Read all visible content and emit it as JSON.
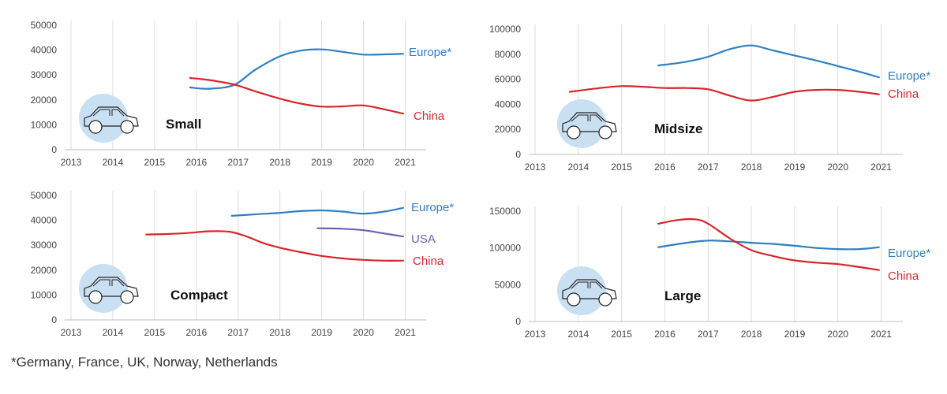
{
  "footnote": "*Germany, France, UK, Norway, Netherlands",
  "colors": {
    "Europe*": "#2f7fc1",
    "China": "#d7262b",
    "USA": "#6a62b5",
    "car_circle": "#c9dff2",
    "car_outline": "#222222"
  },
  "chart_data": [
    {
      "type": "line",
      "title": "Small",
      "x_ticks": [
        "2013",
        "2014",
        "2015",
        "2016",
        "2017",
        "2018",
        "2019",
        "2020",
        "2021"
      ],
      "xlim": [
        2013,
        2021.5
      ],
      "ylim": [
        0,
        50000
      ],
      "y_ticks": [
        "0",
        "10000",
        "20000",
        "30000",
        "40000",
        "50000"
      ],
      "grid": true,
      "series": [
        {
          "name": "Europe*",
          "x": [
            2015.85,
            2016.3,
            2016.9,
            2017.4,
            2018.0,
            2018.5,
            2019.0,
            2019.5,
            2020.0,
            2020.5,
            2020.95
          ],
          "values": [
            25000,
            24500,
            26000,
            32000,
            37500,
            39800,
            40300,
            39300,
            38200,
            38300,
            38500
          ]
        },
        {
          "name": "China",
          "x": [
            2015.85,
            2016.3,
            2016.9,
            2017.4,
            2018.0,
            2018.5,
            2019.0,
            2019.5,
            2020.0,
            2020.5,
            2020.95
          ],
          "values": [
            28800,
            28000,
            26200,
            23500,
            20500,
            18500,
            17300,
            17400,
            17800,
            16200,
            14500
          ]
        }
      ]
    },
    {
      "type": "line",
      "title": "Midsize",
      "x_ticks": [
        "2013",
        "2014",
        "2015",
        "2016",
        "2017",
        "2018",
        "2019",
        "2020",
        "2021"
      ],
      "xlim": [
        2013,
        2021.5
      ],
      "ylim": [
        0,
        100000
      ],
      "y_ticks": [
        "0",
        "20000",
        "40000",
        "60000",
        "80000",
        "100000"
      ],
      "grid": true,
      "series": [
        {
          "name": "Europe*",
          "x": [
            2015.85,
            2016.5,
            2017.0,
            2017.5,
            2018.0,
            2018.5,
            2019.0,
            2019.5,
            2020.0,
            2020.5,
            2020.95
          ],
          "values": [
            71000,
            74000,
            78000,
            84000,
            87000,
            83000,
            79000,
            75000,
            70500,
            66000,
            61500
          ]
        },
        {
          "name": "China",
          "x": [
            2013.8,
            2014.5,
            2015.0,
            2015.5,
            2016.0,
            2016.5,
            2017.0,
            2017.5,
            2018.0,
            2018.5,
            2019.0,
            2019.5,
            2020.0,
            2020.5,
            2020.95
          ],
          "values": [
            50000,
            53000,
            54500,
            54000,
            53000,
            53000,
            52000,
            47000,
            43000,
            46000,
            50000,
            51500,
            51500,
            50000,
            48000
          ]
        }
      ]
    },
    {
      "type": "line",
      "title": "Compact",
      "x_ticks": [
        "2013",
        "2014",
        "2015",
        "2016",
        "2017",
        "2018",
        "2019",
        "2020",
        "2021"
      ],
      "xlim": [
        2013,
        2021.5
      ],
      "ylim": [
        0,
        50000
      ],
      "y_ticks": [
        "0",
        "10000",
        "20000",
        "30000",
        "40000",
        "50000"
      ],
      "grid": true,
      "series": [
        {
          "name": "Europe*",
          "x": [
            2016.85,
            2017.5,
            2018.0,
            2018.5,
            2019.0,
            2019.5,
            2020.0,
            2020.5,
            2020.95
          ],
          "values": [
            41800,
            42500,
            43000,
            43700,
            44000,
            43500,
            42700,
            43500,
            45000
          ]
        },
        {
          "name": "USA",
          "x": [
            2018.9,
            2019.5,
            2020.0,
            2020.5,
            2020.95
          ],
          "values": [
            36800,
            36600,
            36000,
            34700,
            33500
          ]
        },
        {
          "name": "China",
          "x": [
            2014.8,
            2015.3,
            2015.8,
            2016.3,
            2016.8,
            2017.2,
            2017.6,
            2018.0,
            2018.5,
            2019.0,
            2019.5,
            2020.0,
            2020.5,
            2020.95
          ],
          "values": [
            34300,
            34500,
            34900,
            35600,
            35400,
            33500,
            30900,
            29000,
            27200,
            25700,
            24700,
            24100,
            23800,
            23800
          ]
        }
      ]
    },
    {
      "type": "line",
      "title": "Large",
      "x_ticks": [
        "2013",
        "2014",
        "2015",
        "2016",
        "2017",
        "2018",
        "2019",
        "2020",
        "2021"
      ],
      "xlim": [
        2013,
        2021.5
      ],
      "ylim": [
        0,
        150000
      ],
      "y_ticks": [
        "0",
        "50000",
        "100000",
        "150000"
      ],
      "grid": true,
      "series": [
        {
          "name": "Europe*",
          "x": [
            2015.85,
            2016.5,
            2017.0,
            2017.5,
            2018.0,
            2018.5,
            2019.0,
            2019.5,
            2020.0,
            2020.5,
            2020.95
          ],
          "values": [
            101000,
            107000,
            110000,
            109000,
            107000,
            105500,
            103000,
            100000,
            98500,
            98500,
            101000
          ]
        },
        {
          "name": "China",
          "x": [
            2015.85,
            2016.3,
            2016.7,
            2017.0,
            2017.5,
            2018.0,
            2018.5,
            2019.0,
            2019.5,
            2020.0,
            2020.5,
            2020.95
          ],
          "values": [
            133000,
            138000,
            139000,
            133000,
            113000,
            97000,
            89000,
            83000,
            80000,
            78000,
            74000,
            70000
          ]
        }
      ]
    }
  ]
}
